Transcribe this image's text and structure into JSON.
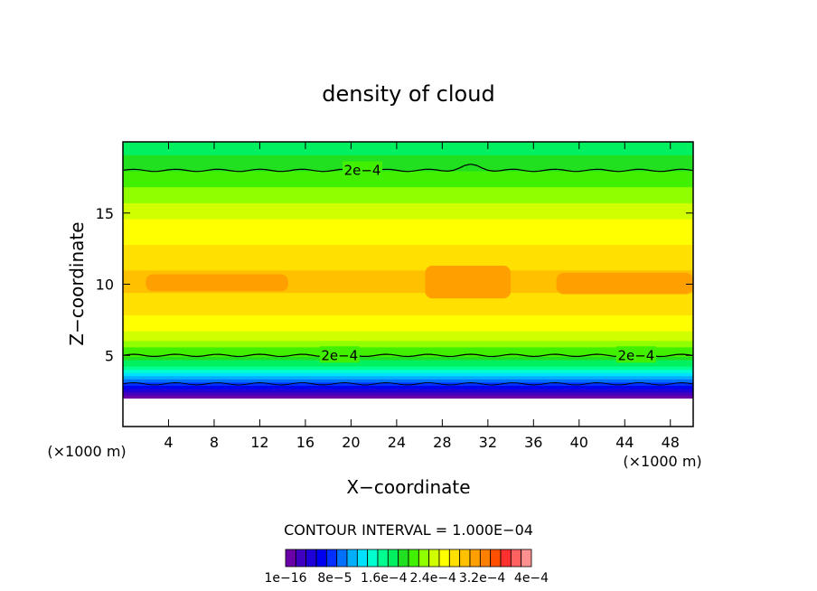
{
  "chart_data": {
    "type": "heatmap",
    "title": "density of cloud",
    "xlabel": "X−coordinate",
    "ylabel": "Z−coordinate",
    "x_unit_left": "(×1000 m)",
    "x_unit_right": "(×1000 m)",
    "xlim": [
      0,
      50
    ],
    "ylim": [
      0,
      20
    ],
    "x_ticks": [
      4,
      8,
      12,
      16,
      20,
      24,
      28,
      32,
      36,
      40,
      44,
      48
    ],
    "y_ticks": [
      5,
      10,
      15
    ],
    "contour_interval_text": "CONTOUR INTERVAL = 1.000E−04",
    "colorbar_labels": [
      "1e−16",
      "8e−5",
      "1.6e−4",
      "2.4e−4",
      "3.2e−4",
      "4e−4"
    ],
    "colorbar_colors": [
      "#6a00a8",
      "#4000c0",
      "#2000d8",
      "#0000f0",
      "#0030ff",
      "#0070ff",
      "#00b0ff",
      "#00e0ff",
      "#00ffd0",
      "#00ff90",
      "#00f060",
      "#20e020",
      "#40f000",
      "#90ff00",
      "#d0ff00",
      "#ffff00",
      "#ffe000",
      "#ffc000",
      "#ffa000",
      "#ff8000",
      "#ff5000",
      "#ff3030",
      "#ff6060",
      "#ff9090"
    ],
    "contour_labels": [
      {
        "text": "2e−4",
        "x": 21,
        "z": 18
      },
      {
        "text": "2e−4",
        "x": 19,
        "z": 5
      },
      {
        "text": "2e−4",
        "x": 45,
        "z": 5
      }
    ],
    "vertical_profile": [
      {
        "z": 2.0,
        "value": 1e-16
      },
      {
        "z": 2.3,
        "value": 2e-05
      },
      {
        "z": 2.7,
        "value": 5e-05
      },
      {
        "z": 3.0,
        "value": 8e-05
      },
      {
        "z": 3.4,
        "value": 0.00011
      },
      {
        "z": 3.8,
        "value": 0.00014
      },
      {
        "z": 4.3,
        "value": 0.00017
      },
      {
        "z": 5.0,
        "value": 0.0002
      },
      {
        "z": 6.0,
        "value": 0.00023
      },
      {
        "z": 7.0,
        "value": 0.000255
      },
      {
        "z": 8.0,
        "value": 0.00027
      },
      {
        "z": 9.0,
        "value": 0.00028
      },
      {
        "z": 10.0,
        "value": 0.00029
      },
      {
        "z": 11.5,
        "value": 0.00028
      },
      {
        "z": 13.0,
        "value": 0.000265
      },
      {
        "z": 14.5,
        "value": 0.00025
      },
      {
        "z": 16.0,
        "value": 0.00023
      },
      {
        "z": 17.0,
        "value": 0.000215
      },
      {
        "z": 18.0,
        "value": 0.0002
      },
      {
        "z": 19.0,
        "value": 0.000185
      },
      {
        "z": 20.0,
        "value": 0.000175
      }
    ]
  }
}
